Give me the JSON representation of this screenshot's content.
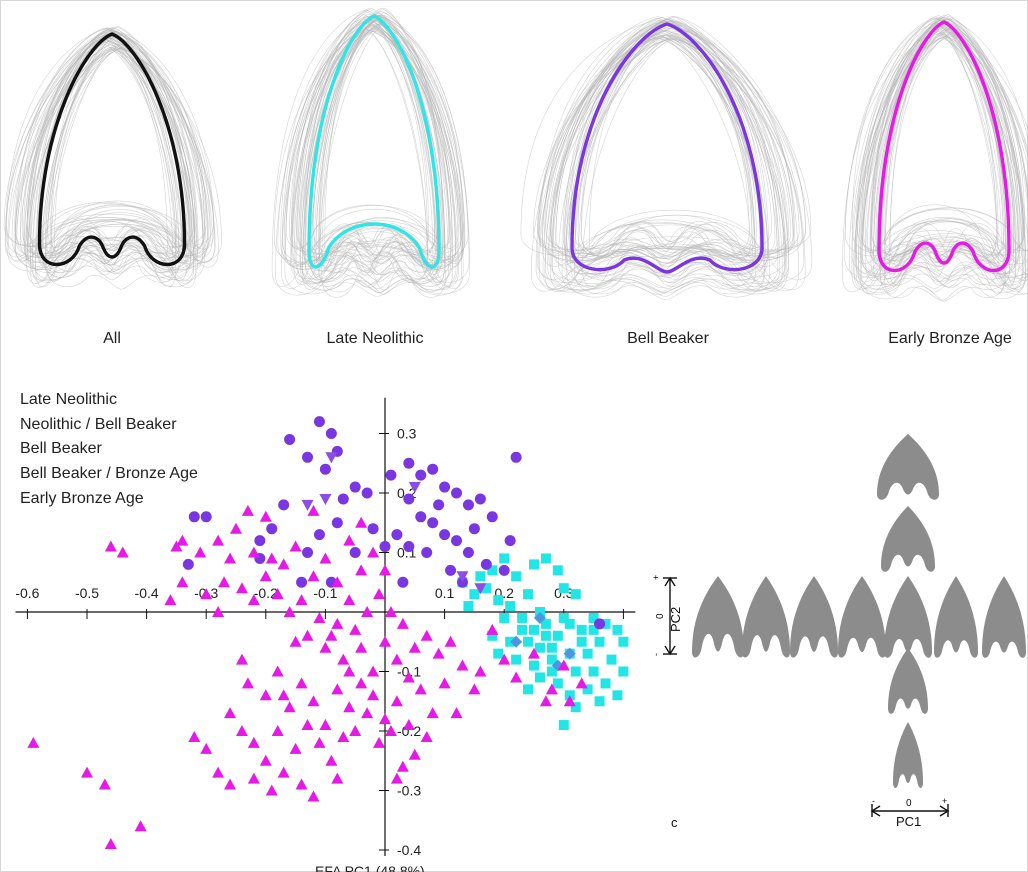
{
  "panel_labels": {
    "all": "All",
    "late_neolithic": "Late Neolithic",
    "bell_beaker": "Bell Beaker",
    "early_bronze_age": "Early Bronze Age"
  },
  "outline_colors": {
    "all": "#111111",
    "late_neolithic": "#2ee6e6",
    "bell_beaker": "#7a36e0",
    "early_bronze_age": "#e619e6",
    "spaghetti": "#b4b4b4"
  },
  "legend": [
    "Late Neolithic",
    "Neolithic / Bell Beaker",
    "Bell Beaker",
    "Bell Beaker / Bronze Age",
    "Early Bronze Age"
  ],
  "scatter": {
    "x_ticks": [
      "-0.6",
      "-0.5",
      "-0.4",
      "-0.3",
      "-0.2",
      "-0.1",
      "0.1",
      "0.2",
      "0.3"
    ],
    "y_ticks": [
      "0.3",
      "0.2",
      "0.1",
      "-0.1",
      "-0.2",
      "-0.3",
      "-0.4"
    ],
    "x_axis_label_partial": "EFA PC1 (48.8%)"
  },
  "chart_data": {
    "type": "scatter",
    "xlabel": "EFA PC1 (48.8%)",
    "ylabel": "",
    "xlim": [
      -0.62,
      0.42
    ],
    "ylim": [
      -0.41,
      0.36
    ],
    "legend": "top-left",
    "series": [
      {
        "name": "Late Neolithic",
        "marker": "square",
        "color": "#22e6e6",
        "points": [
          [
            0.27,
            0.09
          ],
          [
            0.29,
            0.07
          ],
          [
            0.3,
            0.04
          ],
          [
            0.32,
            0.03
          ],
          [
            0.2,
            0.09
          ],
          [
            0.22,
            0.06
          ],
          [
            0.24,
            0.03
          ],
          [
            0.26,
            0.0
          ],
          [
            0.13,
            0.05
          ],
          [
            0.15,
            0.03
          ],
          [
            0.17,
            0.04
          ],
          [
            0.19,
            0.02
          ],
          [
            0.21,
            0.01
          ],
          [
            0.23,
            -0.01
          ],
          [
            0.25,
            -0.03
          ],
          [
            0.27,
            -0.02
          ],
          [
            0.29,
            -0.04
          ],
          [
            0.31,
            -0.02
          ],
          [
            0.33,
            -0.03
          ],
          [
            0.35,
            -0.01
          ],
          [
            0.37,
            -0.02
          ],
          [
            0.39,
            -0.03
          ],
          [
            0.36,
            -0.05
          ],
          [
            0.34,
            -0.07
          ],
          [
            0.31,
            -0.07
          ],
          [
            0.28,
            -0.06
          ],
          [
            0.26,
            -0.06
          ],
          [
            0.24,
            -0.05
          ],
          [
            0.21,
            -0.05
          ],
          [
            0.18,
            -0.04
          ],
          [
            0.19,
            -0.07
          ],
          [
            0.22,
            -0.08
          ],
          [
            0.25,
            -0.09
          ],
          [
            0.28,
            -0.1
          ],
          [
            0.32,
            -0.1
          ],
          [
            0.35,
            -0.1
          ],
          [
            0.38,
            -0.08
          ],
          [
            0.4,
            -0.05
          ],
          [
            0.4,
            -0.1
          ],
          [
            0.37,
            -0.12
          ],
          [
            0.34,
            -0.13
          ],
          [
            0.31,
            -0.14
          ],
          [
            0.3,
            -0.19
          ],
          [
            0.32,
            -0.16
          ],
          [
            0.36,
            -0.15
          ],
          [
            0.39,
            -0.14
          ],
          [
            0.2,
            -0.01
          ],
          [
            0.23,
            -0.03
          ],
          [
            0.27,
            -0.04
          ],
          [
            0.3,
            -0.01
          ],
          [
            0.16,
            0.06
          ],
          [
            0.18,
            0.07
          ],
          [
            0.25,
            0.08
          ],
          [
            0.28,
            -0.08
          ],
          [
            0.33,
            -0.05
          ],
          [
            0.35,
            -0.03
          ],
          [
            0.26,
            -0.11
          ],
          [
            0.24,
            -0.13
          ],
          [
            0.29,
            -0.12
          ],
          [
            0.14,
            0.01
          ]
        ]
      },
      {
        "name": "Neolithic / Bell Beaker",
        "marker": "diamond",
        "color": "#4d96e0",
        "points": [
          [
            0.22,
            -0.05
          ],
          [
            0.26,
            -0.01
          ],
          [
            0.31,
            -0.07
          ],
          [
            0.29,
            -0.09
          ]
        ]
      },
      {
        "name": "Bell Beaker",
        "marker": "circle",
        "color": "#7a36e0",
        "points": [
          [
            -0.11,
            0.32
          ],
          [
            -0.09,
            0.3
          ],
          [
            -0.16,
            0.29
          ],
          [
            -0.13,
            0.26
          ],
          [
            -0.1,
            0.24
          ],
          [
            -0.08,
            0.27
          ],
          [
            -0.05,
            0.21
          ],
          [
            -0.03,
            0.2
          ],
          [
            0.04,
            0.25
          ],
          [
            0.06,
            0.23
          ],
          [
            0.08,
            0.24
          ],
          [
            0.1,
            0.21
          ],
          [
            0.12,
            0.2
          ],
          [
            0.14,
            0.18
          ],
          [
            0.16,
            0.19
          ],
          [
            0.18,
            0.16
          ],
          [
            0.22,
            0.26
          ],
          [
            0.04,
            0.19
          ],
          [
            0.06,
            0.16
          ],
          [
            0.08,
            0.15
          ],
          [
            0.1,
            0.13
          ],
          [
            0.12,
            0.12
          ],
          [
            0.02,
            0.13
          ],
          [
            0.0,
            0.11
          ],
          [
            0.04,
            0.11
          ],
          [
            0.07,
            0.1
          ],
          [
            0.14,
            0.1
          ],
          [
            0.17,
            0.08
          ],
          [
            0.21,
            0.12
          ],
          [
            0.11,
            0.07
          ],
          [
            0.13,
            0.05
          ],
          [
            -0.32,
            0.16
          ],
          [
            -0.3,
            0.16
          ],
          [
            -0.17,
            0.18
          ],
          [
            -0.19,
            0.14
          ],
          [
            -0.21,
            0.12
          ],
          [
            -0.11,
            0.13
          ],
          [
            -0.13,
            0.1
          ],
          [
            -0.14,
            0.05
          ],
          [
            -0.08,
            0.15
          ],
          [
            -0.05,
            0.1
          ],
          [
            -0.33,
            0.08
          ],
          [
            -0.21,
            0.09
          ],
          [
            -0.02,
            0.14
          ],
          [
            0.2,
            0.07
          ],
          [
            0.36,
            -0.02
          ],
          [
            0.03,
            0.05
          ],
          [
            -0.09,
            0.05
          ],
          [
            0.15,
            0.14
          ],
          [
            -0.07,
            0.19
          ],
          [
            0.01,
            0.23
          ],
          [
            0.09,
            0.18
          ]
        ]
      },
      {
        "name": "Bell Beaker / Bronze Age",
        "marker": "triangle-down",
        "color": "#8a4de8",
        "points": [
          [
            -0.09,
            0.26
          ],
          [
            -0.13,
            0.18
          ],
          [
            -0.1,
            0.19
          ],
          [
            0.13,
            0.06
          ],
          [
            0.05,
            0.21
          ],
          [
            0.16,
            0.04
          ]
        ]
      },
      {
        "name": "Early Bronze Age",
        "marker": "triangle-up",
        "color": "#e619e6",
        "points": [
          [
            -0.44,
            0.1
          ],
          [
            -0.46,
            0.11
          ],
          [
            -0.34,
            0.12
          ],
          [
            -0.36,
            0.02
          ],
          [
            -0.31,
            0.1
          ],
          [
            -0.28,
            0.12
          ],
          [
            -0.25,
            0.14
          ],
          [
            -0.22,
            0.1
          ],
          [
            -0.27,
            0.05
          ],
          [
            -0.3,
            0.03
          ],
          [
            -0.24,
            0.04
          ],
          [
            -0.22,
            0.02
          ],
          [
            -0.2,
            0.06
          ],
          [
            -0.17,
            0.08
          ],
          [
            -0.18,
            0.03
          ],
          [
            -0.16,
            0.0
          ],
          [
            -0.14,
            0.02
          ],
          [
            -0.12,
            0.06
          ],
          [
            -0.1,
            0.09
          ],
          [
            -0.08,
            0.05
          ],
          [
            -0.06,
            0.02
          ],
          [
            -0.04,
            0.07
          ],
          [
            -0.03,
            0.0
          ],
          [
            -0.01,
            0.03
          ],
          [
            0.01,
            0.0
          ],
          [
            0.03,
            -0.02
          ],
          [
            -0.05,
            -0.03
          ],
          [
            -0.08,
            -0.02
          ],
          [
            -0.11,
            -0.01
          ],
          [
            -0.13,
            -0.04
          ],
          [
            -0.1,
            -0.06
          ],
          [
            -0.07,
            -0.08
          ],
          [
            -0.04,
            -0.06
          ],
          [
            -0.02,
            -0.1
          ],
          [
            0.0,
            -0.05
          ],
          [
            0.02,
            -0.08
          ],
          [
            0.05,
            -0.06
          ],
          [
            0.07,
            -0.04
          ],
          [
            0.09,
            -0.07
          ],
          [
            0.11,
            -0.05
          ],
          [
            0.13,
            -0.09
          ],
          [
            0.16,
            -0.1
          ],
          [
            0.18,
            -0.03
          ],
          [
            0.2,
            -0.08
          ],
          [
            -0.24,
            -0.08
          ],
          [
            -0.23,
            -0.12
          ],
          [
            -0.2,
            -0.14
          ],
          [
            -0.18,
            -0.1
          ],
          [
            -0.16,
            -0.16
          ],
          [
            -0.14,
            -0.12
          ],
          [
            -0.12,
            -0.15
          ],
          [
            -0.1,
            -0.19
          ],
          [
            -0.08,
            -0.13
          ],
          [
            -0.06,
            -0.16
          ],
          [
            -0.04,
            -0.12
          ],
          [
            -0.02,
            -0.14
          ],
          [
            0.0,
            -0.18
          ],
          [
            0.02,
            -0.15
          ],
          [
            0.04,
            -0.19
          ],
          [
            0.06,
            -0.13
          ],
          [
            0.08,
            -0.17
          ],
          [
            0.1,
            -0.12
          ],
          [
            0.12,
            -0.17
          ],
          [
            -0.26,
            -0.17
          ],
          [
            -0.24,
            -0.2
          ],
          [
            -0.22,
            -0.22
          ],
          [
            -0.2,
            -0.25
          ],
          [
            -0.18,
            -0.2
          ],
          [
            -0.15,
            -0.23
          ],
          [
            -0.13,
            -0.19
          ],
          [
            -0.11,
            -0.22
          ],
          [
            -0.09,
            -0.25
          ],
          [
            -0.07,
            -0.21
          ],
          [
            -0.05,
            -0.2
          ],
          [
            -0.03,
            -0.17
          ],
          [
            -0.01,
            -0.22
          ],
          [
            0.01,
            -0.2
          ],
          [
            0.03,
            -0.26
          ],
          [
            0.05,
            -0.24
          ],
          [
            0.07,
            -0.21
          ],
          [
            -0.3,
            -0.23
          ],
          [
            -0.32,
            -0.21
          ],
          [
            -0.28,
            -0.27
          ],
          [
            -0.26,
            -0.29
          ],
          [
            -0.22,
            -0.28
          ],
          [
            -0.19,
            -0.3
          ],
          [
            -0.17,
            -0.27
          ],
          [
            -0.14,
            -0.29
          ],
          [
            -0.12,
            -0.31
          ],
          [
            -0.59,
            -0.22
          ],
          [
            -0.5,
            -0.27
          ],
          [
            -0.47,
            -0.29
          ],
          [
            -0.41,
            -0.36
          ],
          [
            -0.46,
            -0.39
          ],
          [
            0.28,
            -0.13
          ],
          [
            0.31,
            -0.15
          ],
          [
            0.33,
            -0.12
          ],
          [
            0.3,
            -0.09
          ],
          [
            0.25,
            -0.07
          ],
          [
            0.27,
            -0.15
          ],
          [
            0.22,
            -0.11
          ],
          [
            -0.35,
            0.11
          ],
          [
            -0.26,
            0.09
          ],
          [
            -0.19,
            0.09
          ],
          [
            -0.15,
            0.11
          ],
          [
            -0.06,
            0.12
          ],
          [
            -0.02,
            0.1
          ],
          [
            -0.28,
            0.0
          ],
          [
            -0.09,
            -0.04
          ],
          [
            -0.06,
            -0.1
          ],
          [
            0.04,
            -0.11
          ],
          [
            0.15,
            -0.13
          ],
          [
            -0.15,
            -0.05
          ],
          [
            -0.17,
            -0.14
          ],
          [
            -0.08,
            -0.28
          ],
          [
            0.02,
            -0.28
          ],
          [
            -0.2,
            0.16
          ],
          [
            -0.23,
            0.17
          ],
          [
            -0.34,
            0.05
          ],
          [
            -0.12,
            0.17
          ],
          [
            -0.04,
            0.15
          ],
          [
            0.0,
            0.07
          ]
        ]
      }
    ]
  },
  "morphospace": {
    "pc2_label": "PC2",
    "pc1_label": "PC1",
    "zero": "0",
    "plus": "+",
    "minus": "-",
    "panel_letter": "c"
  }
}
